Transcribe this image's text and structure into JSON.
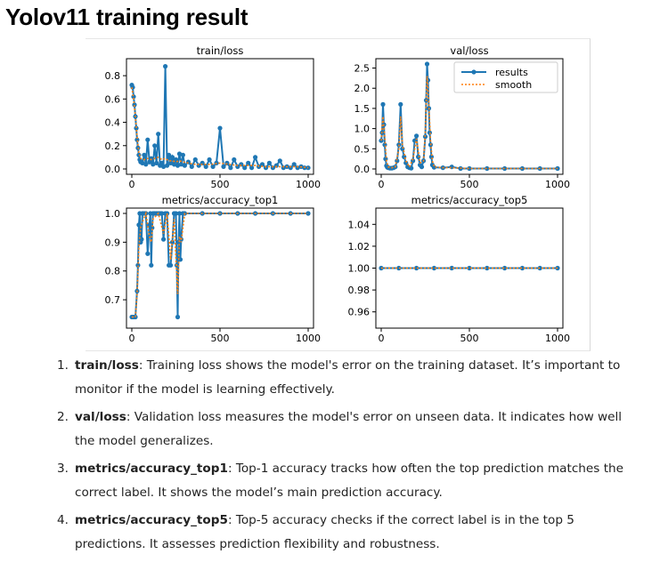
{
  "heading": "Yolov11 training result",
  "chart_data": [
    {
      "type": "line",
      "title": "train/loss",
      "xlim": [
        0,
        1000
      ],
      "ylim": [
        0,
        0.9
      ],
      "xticks": [
        "0",
        "500",
        "1000"
      ],
      "yticks": [
        "0.0",
        "0.2",
        "0.4",
        "0.6",
        "0.8"
      ],
      "series": [
        {
          "name": "results",
          "x": [
            0,
            5,
            10,
            15,
            20,
            25,
            30,
            35,
            40,
            45,
            50,
            60,
            70,
            80,
            90,
            100,
            110,
            120,
            130,
            140,
            150,
            160,
            170,
            180,
            190,
            200,
            210,
            220,
            230,
            240,
            250,
            260,
            270,
            280,
            290,
            300,
            320,
            340,
            360,
            380,
            400,
            420,
            440,
            460,
            480,
            500,
            520,
            540,
            560,
            580,
            600,
            620,
            640,
            660,
            680,
            700,
            720,
            740,
            760,
            780,
            800,
            820,
            840,
            860,
            880,
            900,
            920,
            940,
            960,
            980,
            1000
          ],
          "y": [
            0.72,
            0.7,
            0.62,
            0.55,
            0.45,
            0.35,
            0.25,
            0.18,
            0.12,
            0.08,
            0.06,
            0.05,
            0.12,
            0.04,
            0.25,
            0.06,
            0.09,
            0.04,
            0.2,
            0.05,
            0.3,
            0.03,
            0.05,
            0.02,
            0.88,
            0.03,
            0.12,
            0.05,
            0.1,
            0.04,
            0.08,
            0.03,
            0.13,
            0.04,
            0.12,
            0.03,
            0.06,
            0.02,
            0.08,
            0.03,
            0.05,
            0.02,
            0.08,
            0.02,
            0.05,
            0.35,
            0.02,
            0.05,
            0.01,
            0.08,
            0.02,
            0.04,
            0.01,
            0.05,
            0.01,
            0.1,
            0.02,
            0.04,
            0.01,
            0.05,
            0.01,
            0.03,
            0.07,
            0.01,
            0.02,
            0.01,
            0.04,
            0.01,
            0.02,
            0.01,
            0.01
          ]
        },
        {
          "name": "smooth",
          "x": [
            0,
            10,
            20,
            30,
            40,
            50,
            70,
            90,
            110,
            130,
            150,
            170,
            190,
            210,
            230,
            250,
            270,
            290,
            320,
            360,
            400,
            450,
            500,
            550,
            600,
            650,
            700,
            750,
            800,
            850,
            900,
            950,
            1000
          ],
          "y": [
            0.7,
            0.6,
            0.45,
            0.28,
            0.14,
            0.09,
            0.08,
            0.09,
            0.08,
            0.09,
            0.1,
            0.08,
            0.09,
            0.07,
            0.07,
            0.06,
            0.07,
            0.06,
            0.05,
            0.04,
            0.04,
            0.04,
            0.05,
            0.04,
            0.03,
            0.03,
            0.03,
            0.02,
            0.02,
            0.02,
            0.02,
            0.02,
            0.01
          ]
        }
      ]
    },
    {
      "type": "line",
      "title": "val/loss",
      "xlim": [
        0,
        1000
      ],
      "ylim": [
        0,
        2.6
      ],
      "xticks": [
        "0",
        "500",
        "1000"
      ],
      "yticks": [
        "0.0",
        "0.5",
        "1.0",
        "1.5",
        "2.0",
        "2.5"
      ],
      "legend": {
        "position": "top-right",
        "entries": [
          "results",
          "smooth"
        ]
      },
      "series": [
        {
          "name": "results",
          "x": [
            0,
            5,
            10,
            15,
            20,
            25,
            30,
            35,
            40,
            50,
            60,
            70,
            80,
            90,
            100,
            110,
            120,
            130,
            140,
            150,
            160,
            170,
            180,
            190,
            200,
            210,
            220,
            230,
            240,
            250,
            255,
            260,
            265,
            270,
            275,
            280,
            285,
            290,
            300,
            350,
            400,
            450,
            500,
            600,
            700,
            800,
            900,
            1000
          ],
          "y": [
            0.7,
            0.9,
            1.6,
            1.1,
            0.6,
            0.25,
            0.08,
            0.04,
            0.03,
            0.02,
            0.02,
            0.03,
            0.05,
            0.2,
            0.6,
            1.6,
            0.5,
            0.3,
            0.15,
            0.05,
            0.03,
            0.02,
            0.2,
            0.7,
            0.82,
            0.3,
            0.1,
            0.05,
            0.2,
            0.8,
            1.7,
            2.6,
            2.2,
            1.5,
            0.9,
            0.6,
            0.3,
            0.1,
            0.04,
            0.03,
            0.05,
            0.01,
            0.01,
            0.01,
            0.01,
            0.01,
            0.01,
            0.01
          ]
        },
        {
          "name": "smooth",
          "x": [
            0,
            10,
            20,
            30,
            40,
            60,
            80,
            100,
            110,
            120,
            140,
            160,
            180,
            200,
            220,
            240,
            250,
            260,
            270,
            280,
            290,
            300,
            350,
            400,
            500,
            600,
            700,
            800,
            900,
            1000
          ],
          "y": [
            0.7,
            1.3,
            0.8,
            0.2,
            0.05,
            0.03,
            0.05,
            0.5,
            1.3,
            0.6,
            0.2,
            0.05,
            0.25,
            0.75,
            0.15,
            0.2,
            0.9,
            2.3,
            1.6,
            0.7,
            0.2,
            0.05,
            0.03,
            0.03,
            0.01,
            0.01,
            0.01,
            0.01,
            0.01,
            0.01
          ]
        }
      ]
    },
    {
      "type": "line",
      "title": "metrics/accuracy_top1",
      "xlim": [
        0,
        1000
      ],
      "ylim": [
        0.62,
        1.0
      ],
      "xticks": [
        "0",
        "500",
        "1000"
      ],
      "yticks": [
        "0.7",
        "0.8",
        "0.9",
        "1.0"
      ],
      "series": [
        {
          "name": "results",
          "x": [
            0,
            10,
            20,
            30,
            35,
            40,
            45,
            50,
            55,
            60,
            70,
            80,
            90,
            100,
            105,
            110,
            115,
            120,
            130,
            140,
            150,
            160,
            170,
            180,
            190,
            200,
            210,
            220,
            230,
            240,
            250,
            255,
            260,
            265,
            270,
            275,
            280,
            290,
            300,
            400,
            500,
            600,
            700,
            800,
            900,
            1000
          ],
          "y": [
            0.64,
            0.64,
            0.64,
            0.73,
            0.82,
            0.96,
            1.0,
            0.9,
            0.91,
            1.0,
            1.0,
            1.0,
            0.86,
            0.96,
            1.0,
            0.82,
            0.95,
            1.0,
            1.0,
            1.0,
            1.0,
            1.0,
            1.0,
            0.91,
            1.0,
            1.0,
            0.82,
            0.82,
            0.9,
            1.0,
            1.0,
            0.82,
            0.64,
            0.9,
            1.0,
            0.84,
            0.91,
            1.0,
            1.0,
            1.0,
            1.0,
            1.0,
            1.0,
            1.0,
            1.0,
            1.0
          ]
        },
        {
          "name": "smooth",
          "x": [
            0,
            20,
            30,
            40,
            50,
            60,
            80,
            100,
            110,
            120,
            150,
            180,
            200,
            220,
            240,
            260,
            270,
            280,
            300,
            400,
            500,
            700,
            1000
          ],
          "y": [
            0.64,
            0.64,
            0.72,
            0.88,
            0.95,
            0.97,
            1.0,
            0.92,
            0.9,
            0.98,
            1.0,
            0.93,
            1.0,
            0.84,
            0.98,
            0.72,
            0.92,
            0.9,
            1.0,
            1.0,
            1.0,
            1.0,
            1.0
          ]
        }
      ]
    },
    {
      "type": "line",
      "title": "metrics/accuracy_top5",
      "xlim": [
        0,
        1000
      ],
      "ylim": [
        0.95,
        1.05
      ],
      "xticks": [
        "0",
        "500",
        "1000"
      ],
      "yticks": [
        "0.96",
        "0.98",
        "1.00",
        "1.02",
        "1.04"
      ],
      "series": [
        {
          "name": "results",
          "x": [
            0,
            100,
            200,
            300,
            400,
            500,
            600,
            700,
            800,
            900,
            1000
          ],
          "y": [
            1.0,
            1.0,
            1.0,
            1.0,
            1.0,
            1.0,
            1.0,
            1.0,
            1.0,
            1.0,
            1.0
          ]
        },
        {
          "name": "smooth",
          "x": [
            0,
            1000
          ],
          "y": [
            1.0,
            1.0
          ]
        }
      ]
    }
  ],
  "colors": {
    "results": "#1f77b4",
    "smooth": "#ff7f0e",
    "axis": "#000000"
  },
  "descriptions": [
    {
      "num": "1.",
      "term": "train/loss",
      "text": ": Training loss shows the model's error on the training dataset. It’s important to monitor if the model is learning effectively."
    },
    {
      "num": "2.",
      "term": "val/loss",
      "text": ": Validation loss measures the model's error on unseen data. It indicates how well the model generalizes."
    },
    {
      "num": "3.",
      "term": "metrics/accuracy_top1",
      "text": ": Top-1 accuracy tracks how often the top prediction matches the correct label. It shows the model’s main prediction accuracy."
    },
    {
      "num": "4.",
      "term": "metrics/accuracy_top5",
      "text": ": Top-5 accuracy checks if the correct label is in the top 5 predictions. It assesses prediction flexibility and robustness."
    }
  ]
}
